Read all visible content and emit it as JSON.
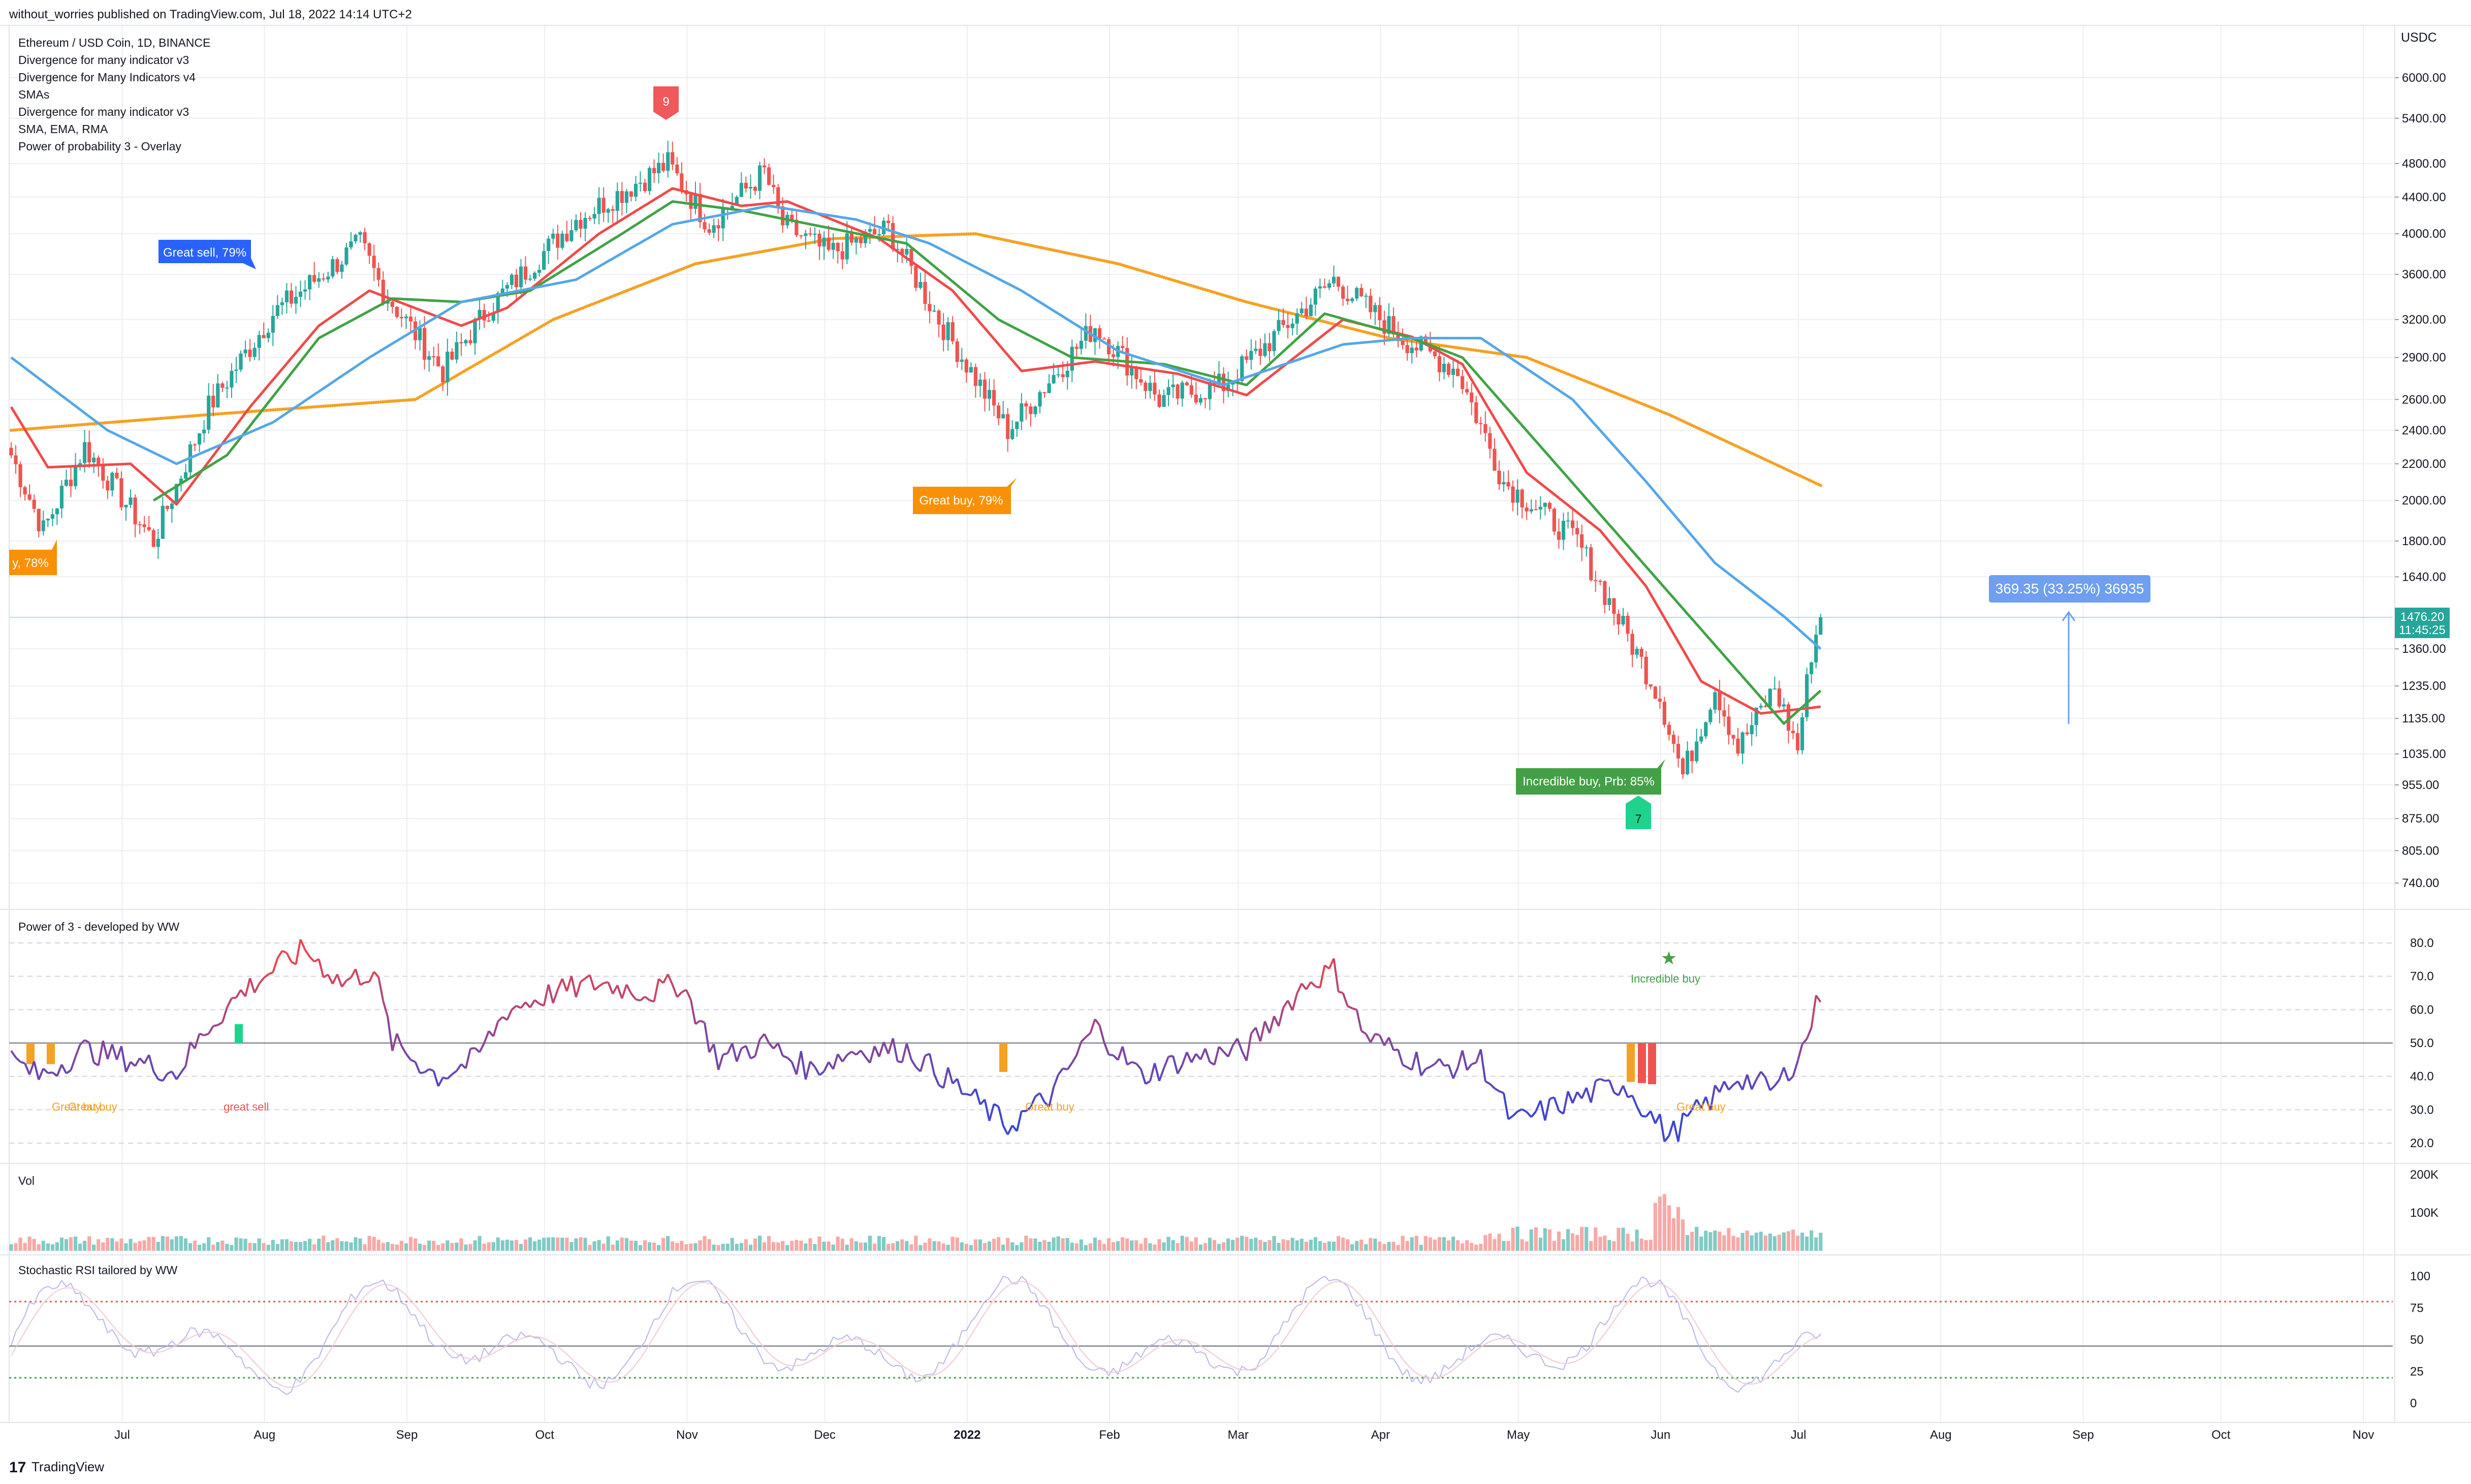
{
  "header": {
    "attribution": "without_worries published on TradingView.com, Jul 18, 2022 14:14 UTC+2"
  },
  "legend": {
    "symbol": "Ethereum / USD Coin, 1D, BINANCE",
    "indicators": [
      "Divergence for many indicator v3",
      "Divergence for Many Indicators v4",
      "SMAs",
      "Divergence for many indicator v3",
      "SMA, EMA, RMA",
      "Power of probability 3 - Overlay"
    ]
  },
  "colors": {
    "up": "#26a69a",
    "down": "#ef5350",
    "ma_red": "#f04a4a",
    "ma_green": "#3fa344",
    "ma_blue": "#55a7e8",
    "ma_orange": "#f5a123",
    "grid": "#edeef1",
    "axis_text": "#131722",
    "label_blue": "#2962ff",
    "label_orange": "#f89108",
    "label_green": "#43a047",
    "arrow_red": "#f0595b",
    "arrow_green": "#1fd38c",
    "measure": "#6e9ff0"
  },
  "main_pane": {
    "currency": "USDC",
    "price_ticks": [
      "6000.00",
      "5400.00",
      "4800.00",
      "4400.00",
      "4000.00",
      "3600.00",
      "3200.00",
      "2900.00",
      "2600.00",
      "2400.00",
      "2200.00",
      "2000.00",
      "1800.00",
      "1640.00",
      "1360.00",
      "1235.00",
      "1135.00",
      "1035.00",
      "955.00",
      "875.00",
      "805.00",
      "740.00"
    ],
    "last_price": "1476.20",
    "countdown": "11:45:25",
    "labels": {
      "great_sell": "Great sell, 79%",
      "great_buy_left": "y, 78%",
      "great_buy_mid": "Great buy, 79%",
      "incredible_buy": "Incredible buy, Prb: 85%",
      "arrow_top": "9",
      "arrow_bottom": "7",
      "measure": "369.35 (33.25%) 36935"
    }
  },
  "power_pane": {
    "title": "Power of 3 - developed by WW",
    "ticks": [
      "80.0",
      "70.0",
      "60.0",
      "50.0",
      "40.0",
      "30.0",
      "20.0"
    ],
    "labels": {
      "great_buy_1": "Great buy",
      "great_buy_2": "Great buy",
      "great_sell": "great sell",
      "great_buy_3": "Great buy",
      "incredible_buy": "Incredible buy",
      "great_buy_4": "Great buy"
    }
  },
  "vol_pane": {
    "title": "Vol",
    "ticks": [
      "200K",
      "100K"
    ]
  },
  "stoch_pane": {
    "title": "Stochastic RSI tailored by WW",
    "ticks": [
      "100",
      "75",
      "50",
      "25",
      "0"
    ]
  },
  "time_axis": {
    "labels": [
      "Jul",
      "Aug",
      "Sep",
      "Oct",
      "Nov",
      "Dec",
      "2022",
      "Feb",
      "Mar",
      "Apr",
      "May",
      "Jun",
      "Jul",
      "Aug",
      "Sep",
      "Oct",
      "Nov"
    ]
  },
  "footer": {
    "brand": "TradingView"
  },
  "chart_data": {
    "type": "candlestick",
    "title": "Ethereum / USD Coin, 1D, BINANCE",
    "y_scale": "log",
    "ylim": [
      700,
      6300
    ],
    "time_range": [
      "2021-06-19",
      "2022-07-18"
    ],
    "last_price": 1476.2,
    "price_path_anchors": [
      {
        "date": "2021-06-19",
        "close": 2250
      },
      {
        "date": "2021-06-26",
        "close": 1850
      },
      {
        "date": "2021-07-05",
        "close": 2300
      },
      {
        "date": "2021-07-20",
        "close": 1800
      },
      {
        "date": "2021-08-01",
        "close": 2550
      },
      {
        "date": "2021-08-15",
        "close": 3250
      },
      {
        "date": "2021-09-03",
        "close": 3900
      },
      {
        "date": "2021-09-08",
        "close": 3450
      },
      {
        "date": "2021-09-21",
        "close": 2800
      },
      {
        "date": "2021-10-01",
        "close": 3300
      },
      {
        "date": "2021-10-20",
        "close": 4150
      },
      {
        "date": "2021-11-09",
        "close": 4800
      },
      {
        "date": "2021-11-18",
        "close": 4100
      },
      {
        "date": "2021-11-30",
        "close": 4700
      },
      {
        "date": "2021-12-04",
        "close": 4100
      },
      {
        "date": "2021-12-14",
        "close": 3800
      },
      {
        "date": "2021-12-27",
        "close": 4050
      },
      {
        "date": "2022-01-07",
        "close": 3200
      },
      {
        "date": "2022-01-22",
        "close": 2400
      },
      {
        "date": "2022-02-10",
        "close": 3150
      },
      {
        "date": "2022-02-24",
        "close": 2600
      },
      {
        "date": "2022-03-10",
        "close": 2700
      },
      {
        "date": "2022-04-03",
        "close": 3550
      },
      {
        "date": "2022-04-18",
        "close": 3050
      },
      {
        "date": "2022-04-30",
        "close": 2800
      },
      {
        "date": "2022-05-10",
        "close": 2100
      },
      {
        "date": "2022-05-26",
        "close": 1800
      },
      {
        "date": "2022-06-13",
        "close": 1200
      },
      {
        "date": "2022-06-18",
        "close": 980
      },
      {
        "date": "2022-06-25",
        "close": 1230
      },
      {
        "date": "2022-06-30",
        "close": 1050
      },
      {
        "date": "2022-07-08",
        "close": 1230
      },
      {
        "date": "2022-07-13",
        "close": 1050
      },
      {
        "date": "2022-07-16",
        "close": 1350
      },
      {
        "date": "2022-07-18",
        "close": 1476
      }
    ],
    "moving_averages": [
      {
        "name": "red",
        "points": [
          {
            "date": "2021-06-19",
            "value": 2550
          },
          {
            "date": "2021-06-27",
            "value": 2180
          },
          {
            "date": "2021-07-15",
            "value": 2200
          },
          {
            "date": "2021-07-25",
            "value": 1980
          },
          {
            "date": "2021-08-10",
            "value": 2550
          },
          {
            "date": "2021-08-25",
            "value": 3150
          },
          {
            "date": "2021-09-05",
            "value": 3450
          },
          {
            "date": "2021-09-25",
            "value": 3150
          },
          {
            "date": "2021-10-05",
            "value": 3300
          },
          {
            "date": "2021-10-25",
            "value": 4000
          },
          {
            "date": "2021-11-10",
            "value": 4500
          },
          {
            "date": "2021-11-25",
            "value": 4300
          },
          {
            "date": "2021-12-05",
            "value": 4350
          },
          {
            "date": "2021-12-25",
            "value": 3950
          },
          {
            "date": "2022-01-10",
            "value": 3450
          },
          {
            "date": "2022-01-25",
            "value": 2800
          },
          {
            "date": "2022-02-10",
            "value": 2870
          },
          {
            "date": "2022-02-28",
            "value": 2780
          },
          {
            "date": "2022-03-15",
            "value": 2630
          },
          {
            "date": "2022-04-05",
            "value": 3200
          },
          {
            "date": "2022-04-20",
            "value": 3060
          },
          {
            "date": "2022-05-01",
            "value": 2850
          },
          {
            "date": "2022-05-15",
            "value": 2150
          },
          {
            "date": "2022-05-31",
            "value": 1850
          },
          {
            "date": "2022-06-10",
            "value": 1600
          },
          {
            "date": "2022-06-22",
            "value": 1250
          },
          {
            "date": "2022-07-05",
            "value": 1150
          },
          {
            "date": "2022-07-18",
            "value": 1170
          }
        ]
      },
      {
        "name": "green",
        "points": [
          {
            "date": "2021-07-20",
            "value": 2000
          },
          {
            "date": "2021-08-05",
            "value": 2250
          },
          {
            "date": "2021-08-25",
            "value": 3050
          },
          {
            "date": "2021-09-10",
            "value": 3380
          },
          {
            "date": "2021-09-25",
            "value": 3350
          },
          {
            "date": "2021-10-10",
            "value": 3450
          },
          {
            "date": "2021-10-30",
            "value": 4000
          },
          {
            "date": "2021-11-10",
            "value": 4350
          },
          {
            "date": "2021-11-25",
            "value": 4250
          },
          {
            "date": "2021-12-10",
            "value": 4100
          },
          {
            "date": "2021-12-31",
            "value": 3900
          },
          {
            "date": "2022-01-20",
            "value": 3200
          },
          {
            "date": "2022-02-05",
            "value": 2900
          },
          {
            "date": "2022-02-25",
            "value": 2850
          },
          {
            "date": "2022-03-15",
            "value": 2700
          },
          {
            "date": "2022-04-01",
            "value": 3250
          },
          {
            "date": "2022-04-20",
            "value": 3050
          },
          {
            "date": "2022-05-01",
            "value": 2900
          },
          {
            "date": "2022-07-10",
            "value": 1120
          },
          {
            "date": "2022-07-18",
            "value": 1220
          }
        ]
      },
      {
        "name": "blue",
        "points": [
          {
            "date": "2021-06-19",
            "value": 2900
          },
          {
            "date": "2021-07-10",
            "value": 2400
          },
          {
            "date": "2021-07-25",
            "value": 2200
          },
          {
            "date": "2021-08-15",
            "value": 2450
          },
          {
            "date": "2021-09-05",
            "value": 2900
          },
          {
            "date": "2021-09-25",
            "value": 3350
          },
          {
            "date": "2021-10-20",
            "value": 3550
          },
          {
            "date": "2021-11-10",
            "value": 4100
          },
          {
            "date": "2021-12-01",
            "value": 4300
          },
          {
            "date": "2021-12-20",
            "value": 4150
          },
          {
            "date": "2022-01-05",
            "value": 3900
          },
          {
            "date": "2022-01-25",
            "value": 3450
          },
          {
            "date": "2022-02-15",
            "value": 2950
          },
          {
            "date": "2022-03-10",
            "value": 2700
          },
          {
            "date": "2022-04-05",
            "value": 3000
          },
          {
            "date": "2022-04-20",
            "value": 3050
          },
          {
            "date": "2022-05-05",
            "value": 3050
          },
          {
            "date": "2022-05-25",
            "value": 2600
          },
          {
            "date": "2022-06-10",
            "value": 2100
          },
          {
            "date": "2022-06-25",
            "value": 1700
          },
          {
            "date": "2022-07-10",
            "value": 1480
          },
          {
            "date": "2022-07-18",
            "value": 1360
          }
        ]
      },
      {
        "name": "orange",
        "points": [
          {
            "date": "2021-06-19",
            "value": 2400
          },
          {
            "date": "2021-08-01",
            "value": 2500
          },
          {
            "date": "2021-09-15",
            "value": 2600
          },
          {
            "date": "2021-10-15",
            "value": 3200
          },
          {
            "date": "2021-11-15",
            "value": 3700
          },
          {
            "date": "2021-12-15",
            "value": 3950
          },
          {
            "date": "2022-01-15",
            "value": 4000
          },
          {
            "date": "2022-02-15",
            "value": 3700
          },
          {
            "date": "2022-03-15",
            "value": 3350
          },
          {
            "date": "2022-04-15",
            "value": 3050
          },
          {
            "date": "2022-05-15",
            "value": 2900
          },
          {
            "date": "2022-06-15",
            "value": 2500
          },
          {
            "date": "2022-07-18",
            "value": 2080
          }
        ]
      }
    ],
    "power_of_3_oscillator": {
      "ylim": [
        15,
        85
      ],
      "points": [
        {
          "date": "2021-06-19",
          "value": 45
        },
        {
          "date": "2021-06-25",
          "value": 40
        },
        {
          "date": "2021-07-05",
          "value": 48
        },
        {
          "date": "2021-07-15",
          "value": 45
        },
        {
          "date": "2021-07-25",
          "value": 41
        },
        {
          "date": "2021-08-01",
          "value": 55
        },
        {
          "date": "2021-08-08",
          "value": 65
        },
        {
          "date": "2021-08-15",
          "value": 72
        },
        {
          "date": "2021-08-22",
          "value": 78
        },
        {
          "date": "2021-08-30",
          "value": 68
        },
        {
          "date": "2021-09-06",
          "value": 72
        },
        {
          "date": "2021-09-10",
          "value": 50
        },
        {
          "date": "2021-09-20",
          "value": 40
        },
        {
          "date": "2021-09-28",
          "value": 45
        },
        {
          "date": "2021-10-05",
          "value": 60
        },
        {
          "date": "2021-10-15",
          "value": 65
        },
        {
          "date": "2021-10-25",
          "value": 68
        },
        {
          "date": "2021-11-05",
          "value": 65
        },
        {
          "date": "2021-11-12",
          "value": 68
        },
        {
          "date": "2021-11-20",
          "value": 45
        },
        {
          "date": "2021-11-30",
          "value": 50
        },
        {
          "date": "2021-12-10",
          "value": 42
        },
        {
          "date": "2021-12-20",
          "value": 48
        },
        {
          "date": "2021-12-31",
          "value": 48
        },
        {
          "date": "2022-01-10",
          "value": 38
        },
        {
          "date": "2022-01-22",
          "value": 25
        },
        {
          "date": "2022-02-01",
          "value": 35
        },
        {
          "date": "2022-02-10",
          "value": 55
        },
        {
          "date": "2022-02-20",
          "value": 40
        },
        {
          "date": "2022-03-01",
          "value": 45
        },
        {
          "date": "2022-03-15",
          "value": 48
        },
        {
          "date": "2022-03-28",
          "value": 68
        },
        {
          "date": "2022-04-03",
          "value": 72
        },
        {
          "date": "2022-04-10",
          "value": 52
        },
        {
          "date": "2022-04-25",
          "value": 42
        },
        {
          "date": "2022-05-05",
          "value": 45
        },
        {
          "date": "2022-05-12",
          "value": 26
        },
        {
          "date": "2022-05-25",
          "value": 33
        },
        {
          "date": "2022-06-05",
          "value": 38
        },
        {
          "date": "2022-06-15",
          "value": 22
        },
        {
          "date": "2022-06-20",
          "value": 28
        },
        {
          "date": "2022-06-30",
          "value": 40
        },
        {
          "date": "2022-07-08",
          "value": 36
        },
        {
          "date": "2022-07-14",
          "value": 48
        },
        {
          "date": "2022-07-18",
          "value": 65
        }
      ]
    },
    "volume": {
      "ylim": [
        0,
        200000
      ],
      "peak_date": "2022-06-13",
      "peak": 160000
    },
    "stochastic_rsi": {
      "ylim": [
        0,
        100
      ],
      "levels": [
        80,
        45,
        20
      ]
    }
  }
}
